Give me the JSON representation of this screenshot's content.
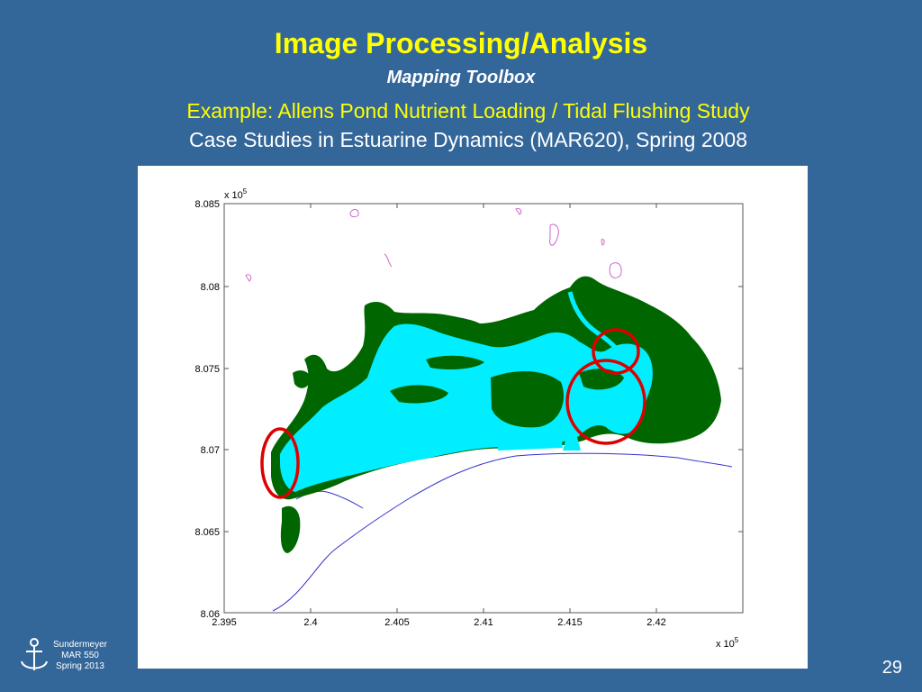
{
  "slide": {
    "title": "Image Processing/Analysis",
    "subtitle": "Mapping Toolbox",
    "example_line": "Example: Allens Pond Nutrient Loading / Tidal Flushing Study",
    "course_line": "Case Studies in Estuarine Dynamics (MAR620), Spring 2008",
    "page_number": "29",
    "footer": {
      "line1": "Sundermeyer",
      "line2": "MAR 550",
      "line3": "Spring 2013",
      "logo_icon": "anchor-icon"
    },
    "background_color": "#336699"
  },
  "map": {
    "x_ticks": [
      "2.395",
      "2.4",
      "2.405",
      "2.41",
      "2.415",
      "2.42"
    ],
    "y_ticks": [
      "8.085",
      "8.08",
      "8.075",
      "8.07",
      "8.065",
      "8.06"
    ],
    "x_multiplier_base": "x 10",
    "x_multiplier_exp": "5",
    "y_multiplier_base": "x 10",
    "y_multiplier_exp": "5",
    "colors": {
      "land": "#006600",
      "water": "#00eeff",
      "highlight_circles": "#dd0000",
      "shoreline": "#3333cc"
    }
  }
}
